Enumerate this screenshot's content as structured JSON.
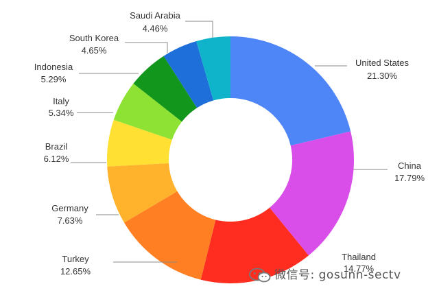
{
  "chart_data": {
    "type": "pie",
    "variant": "donut",
    "title": "",
    "legend": "none",
    "slices": [
      {
        "label": "United States",
        "value": 21.3,
        "display": "21.30%",
        "color": "#4F86F7"
      },
      {
        "label": "China",
        "value": 17.79,
        "display": "17.79%",
        "color": "#D94EE8"
      },
      {
        "label": "Thailand",
        "value": 14.77,
        "display": "14.77%",
        "color": "#FF2D20"
      },
      {
        "label": "Turkey",
        "value": 12.65,
        "display": "12.65%",
        "color": "#FF7F22"
      },
      {
        "label": "Germany",
        "value": 7.63,
        "display": "7.63%",
        "color": "#FFB22B"
      },
      {
        "label": "Brazil",
        "value": 6.12,
        "display": "6.12%",
        "color": "#FFE033"
      },
      {
        "label": "Italy",
        "value": 5.34,
        "display": "5.34%",
        "color": "#8EE234"
      },
      {
        "label": "Indonesia",
        "value": 5.29,
        "display": "5.29%",
        "color": "#12961C"
      },
      {
        "label": "South Korea",
        "value": 4.65,
        "display": "4.65%",
        "color": "#1E6FD9"
      },
      {
        "label": "Saudi Arabia",
        "value": 4.46,
        "display": "4.46%",
        "color": "#0FB4CB"
      }
    ]
  },
  "watermark": {
    "text": "微信号: gosunn-sectv",
    "icon": "wechat-icon"
  }
}
